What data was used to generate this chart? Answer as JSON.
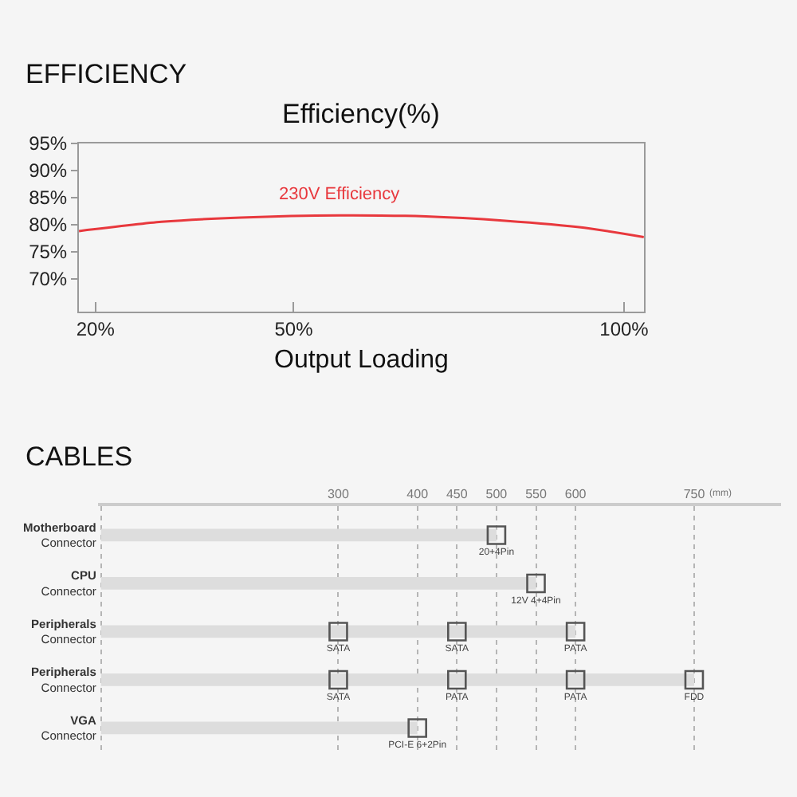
{
  "chart_data": [
    {
      "type": "line",
      "title": "EFFICIENCY",
      "subtitle": "Efficiency(%)",
      "xlabel": "Output Loading",
      "x": [
        17.5,
        30,
        42,
        57,
        70,
        82,
        94,
        103
      ],
      "series": [
        {
          "name": "230V Efficiency",
          "color": "#e8383d",
          "values": [
            78.8,
            80.5,
            81.3,
            81.7,
            81.5,
            80.7,
            79.4,
            77.7
          ]
        }
      ],
      "xlim": [
        17.5,
        103
      ],
      "xticks": [
        {
          "value": 20,
          "label": "20%"
        },
        {
          "value": 50,
          "label": "50%"
        },
        {
          "value": 100,
          "label": "100%"
        }
      ],
      "ylim": [
        64,
        95
      ],
      "yticks": [
        {
          "value": 70,
          "label": "70%"
        },
        {
          "value": 75,
          "label": "75%"
        },
        {
          "value": 80,
          "label": "80%"
        },
        {
          "value": 85,
          "label": "85%"
        },
        {
          "value": 90,
          "label": "90%"
        },
        {
          "value": 95,
          "label": "95%"
        }
      ]
    },
    {
      "type": "bar",
      "title": "CABLES",
      "orientation": "horizontal",
      "xlabel": "(mm)",
      "categories": [
        "Motherboard Connector",
        "CPU Connector",
        "Peripherals Connector",
        "Peripherals Connector",
        "VGA Connector"
      ],
      "series": [
        {
          "color": "#dddddd",
          "values": [
            500,
            550,
            600,
            750,
            400
          ]
        },
        {
          "type": "scatter",
          "color": "#555555",
          "marker": "square",
          "values": [
            500,
            550,
            300,
            300,
            400
          ],
          "value_labels": [
            "20+4Pin",
            "12V 4+4Pin",
            "SATA",
            "SATA",
            "PCI-E 6+2Pin"
          ]
        },
        {
          "type": "scatter",
          "color": "#555555",
          "marker": "square",
          "values": [
            null,
            null,
            450,
            450,
            null
          ],
          "value_labels": [
            null,
            null,
            "SATA",
            "PATA",
            null
          ]
        },
        {
          "type": "scatter",
          "color": "#555555",
          "marker": "square",
          "values": [
            null,
            null,
            600,
            600,
            null
          ],
          "value_labels": [
            null,
            null,
            "PATA",
            "PATA",
            null
          ]
        },
        {
          "type": "scatter",
          "color": "#555555",
          "marker": "square",
          "values": [
            null,
            null,
            null,
            750,
            null
          ],
          "value_labels": [
            null,
            null,
            null,
            "FDD",
            null
          ]
        }
      ],
      "xlim": [
        -4,
        860
      ],
      "xticks": [
        {
          "value": 0,
          "label": null
        },
        300,
        400,
        450,
        500,
        550,
        600,
        750
      ],
      "grid": "x"
    }
  ]
}
